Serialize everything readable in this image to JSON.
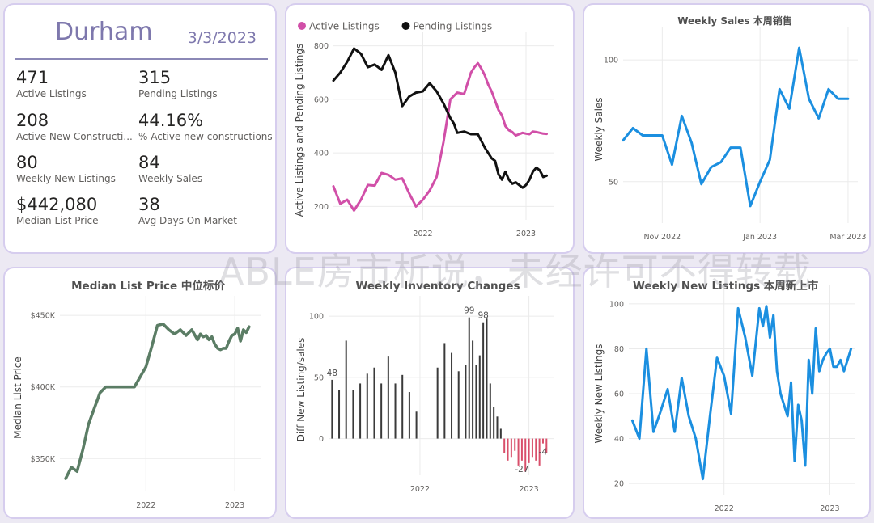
{
  "kpi": {
    "city": "Durham",
    "date": "3/3/2023",
    "items": [
      {
        "value": "471",
        "label": "Active Listings"
      },
      {
        "value": "315",
        "label": "Pending Listings"
      },
      {
        "value": "208",
        "label": "Active New Constructi..."
      },
      {
        "value": "44.16%",
        "label": "% Active new constructions"
      },
      {
        "value": "80",
        "label": "Weekly New Listings"
      },
      {
        "value": "84",
        "label": "Weekly Sales"
      },
      {
        "value": "$442,080",
        "label": "Median List Price"
      },
      {
        "value": "38",
        "label": "Avg Days On Market"
      }
    ]
  },
  "watermark": "ABLE房市析说，未经许可不得转载",
  "chart_data": [
    {
      "id": "listings",
      "type": "line",
      "title": "",
      "ylabel": "Active Listings and Pending Listings",
      "xlabel": "",
      "ylim": [
        150,
        820
      ],
      "xlim": [
        0,
        64
      ],
      "yticks": [
        200,
        400,
        600,
        800
      ],
      "xticks": [
        {
          "pos": 26,
          "label": "2022"
        },
        {
          "pos": 56,
          "label": "2023"
        }
      ],
      "legend": "top-left",
      "series": [
        {
          "name": "Active Listings",
          "color": "#d14fa8",
          "x": [
            0,
            2,
            4,
            6,
            8,
            10,
            12,
            14,
            16,
            18,
            20,
            22,
            24,
            26,
            28,
            30,
            32,
            34,
            36,
            38,
            40,
            41,
            42,
            43,
            44,
            45,
            46,
            47,
            48,
            49,
            50,
            51,
            52,
            53,
            54,
            55,
            56,
            57,
            58,
            59,
            60,
            61,
            62
          ],
          "y": [
            275,
            210,
            225,
            185,
            225,
            280,
            278,
            325,
            318,
            300,
            305,
            250,
            200,
            225,
            260,
            310,
            440,
            600,
            625,
            620,
            700,
            720,
            735,
            715,
            690,
            655,
            630,
            595,
            560,
            540,
            500,
            485,
            478,
            465,
            470,
            475,
            472,
            470,
            480,
            478,
            475,
            472,
            471
          ]
        },
        {
          "name": "Pending Listings",
          "color": "#111111",
          "x": [
            0,
            2,
            4,
            6,
            8,
            10,
            12,
            14,
            16,
            18,
            20,
            22,
            24,
            26,
            28,
            30,
            32,
            34,
            35,
            36,
            38,
            40,
            42,
            44,
            46,
            47,
            48,
            49,
            50,
            51,
            52,
            53,
            54,
            55,
            56,
            57,
            58,
            59,
            60,
            61,
            62
          ],
          "y": [
            670,
            700,
            740,
            790,
            770,
            720,
            730,
            710,
            765,
            700,
            575,
            610,
            625,
            630,
            660,
            630,
            585,
            530,
            510,
            475,
            480,
            470,
            470,
            420,
            380,
            370,
            320,
            300,
            330,
            300,
            285,
            290,
            280,
            270,
            280,
            300,
            330,
            345,
            335,
            310,
            315
          ]
        }
      ]
    },
    {
      "id": "weekly-sales",
      "type": "line",
      "title": "Weekly Sales 本周销售",
      "ylabel": "Weekly Sales",
      "xlabel": "",
      "ylim": [
        33,
        110
      ],
      "xlim": [
        0,
        24
      ],
      "yticks": [
        50,
        100
      ],
      "xticks": [
        {
          "pos": 4,
          "label": "Nov 2022"
        },
        {
          "pos": 14,
          "label": "Jan 2023"
        },
        {
          "pos": 23,
          "label": "Mar 2023"
        }
      ],
      "series": [
        {
          "name": "",
          "color": "#1b8fe0",
          "x": [
            0,
            1,
            2,
            3,
            4,
            5,
            6,
            7,
            8,
            9,
            10,
            11,
            12,
            13,
            14,
            15,
            16,
            17,
            18,
            19,
            20,
            21,
            22,
            23
          ],
          "y": [
            67,
            72,
            69,
            69,
            69,
            57,
            77,
            66,
            49,
            56,
            58,
            64,
            64,
            40,
            50,
            59,
            88,
            80,
            105,
            84,
            76,
            88,
            84,
            84
          ]
        }
      ]
    },
    {
      "id": "median-price",
      "type": "line",
      "title": "Median List Price  中位标价",
      "ylabel": "Median List Price",
      "xlabel": "",
      "ylim": [
        327,
        458
      ],
      "xlim": [
        -2,
        68
      ],
      "yticks": [
        {
          "value": 350,
          "label": "$350K"
        },
        {
          "value": 400,
          "label": "$400K"
        },
        {
          "value": 450,
          "label": "$450K"
        }
      ],
      "xticks": [
        {
          "pos": 28,
          "label": "2022"
        },
        {
          "pos": 59,
          "label": "2023"
        }
      ],
      "series": [
        {
          "name": "",
          "color": "#5b7d65",
          "x": [
            0,
            2,
            4,
            6,
            8,
            10,
            12,
            14,
            16,
            18,
            20,
            22,
            24,
            26,
            28,
            30,
            32,
            34,
            36,
            38,
            40,
            42,
            44,
            46,
            47,
            48,
            49,
            50,
            51,
            52,
            53,
            54,
            55,
            56,
            57,
            58,
            59,
            60,
            61,
            62,
            63,
            64
          ],
          "y": [
            336,
            344,
            341,
            356,
            374,
            385,
            396,
            400,
            400,
            400,
            400,
            400,
            400,
            407,
            414,
            428,
            443,
            444,
            440,
            437,
            440,
            436,
            440,
            433,
            437,
            435,
            436,
            433,
            435,
            430,
            427,
            426,
            427,
            427,
            432,
            436,
            437,
            441,
            432,
            440,
            438,
            442
          ]
        }
      ]
    },
    {
      "id": "inventory-changes",
      "type": "bar",
      "title": "Weekly Inventory Changes",
      "ylabel": "Diff New Listing/sales",
      "xlabel": "",
      "ylim": [
        -30,
        110
      ],
      "xlim": [
        -1,
        63
      ],
      "yticks": [
        0,
        50,
        100
      ],
      "xticks": [
        {
          "pos": 25,
          "label": "2022"
        },
        {
          "pos": 56,
          "label": "2023"
        }
      ],
      "positive_color": "#3a3a3a",
      "negative_color": "#d94f6b",
      "data_labels": [
        {
          "x": 0,
          "text": "48"
        },
        {
          "x": 39,
          "text": "99"
        },
        {
          "x": 43,
          "text": "98"
        },
        {
          "x": 54,
          "text": "-27"
        },
        {
          "x": 60,
          "text": "-4"
        }
      ],
      "x": [
        0,
        2,
        4,
        6,
        8,
        10,
        12,
        14,
        16,
        18,
        20,
        22,
        24,
        30,
        32,
        34,
        36,
        38,
        39,
        40,
        41,
        42,
        43,
        44,
        45,
        46,
        47,
        48,
        49,
        50,
        51,
        52,
        53,
        54,
        55,
        56,
        57,
        58,
        59,
        60,
        61
      ],
      "values": [
        48,
        40,
        80,
        40,
        45,
        53,
        58,
        45,
        67,
        45,
        52,
        38,
        22,
        58,
        78,
        70,
        55,
        60,
        99,
        80,
        60,
        68,
        95,
        98,
        45,
        26,
        18,
        8,
        -12,
        -18,
        -15,
        -10,
        -22,
        -18,
        -27,
        -20,
        -15,
        -18,
        -22,
        -4,
        -12
      ]
    },
    {
      "id": "new-listings",
      "type": "line",
      "title": "Weekly New Listings  本周新上市",
      "ylabel": "Weekly New Listings",
      "xlabel": "",
      "ylim": [
        15,
        105
      ],
      "xlim": [
        -1,
        63
      ],
      "yticks": [
        20,
        40,
        60,
        80,
        100
      ],
      "xticks": [
        {
          "pos": 26,
          "label": "2022"
        },
        {
          "pos": 56,
          "label": "2023"
        }
      ],
      "series": [
        {
          "name": "",
          "color": "#1b8fe0",
          "x": [
            0,
            2,
            4,
            6,
            8,
            10,
            12,
            14,
            16,
            18,
            20,
            22,
            24,
            26,
            28,
            30,
            32,
            34,
            36,
            37,
            38,
            39,
            40,
            41,
            42,
            43,
            44,
            45,
            46,
            47,
            48,
            49,
            50,
            51,
            52,
            53,
            54,
            55,
            56,
            57,
            58,
            59,
            60,
            61,
            62
          ],
          "y": [
            48,
            40,
            80,
            43,
            52,
            62,
            43,
            67,
            50,
            40,
            22,
            50,
            76,
            68,
            51,
            98,
            85,
            68,
            98,
            90,
            99,
            85,
            95,
            70,
            60,
            55,
            50,
            65,
            30,
            55,
            48,
            28,
            75,
            60,
            89,
            70,
            75,
            78,
            80,
            72,
            72,
            75,
            70,
            75,
            80
          ]
        }
      ]
    }
  ]
}
